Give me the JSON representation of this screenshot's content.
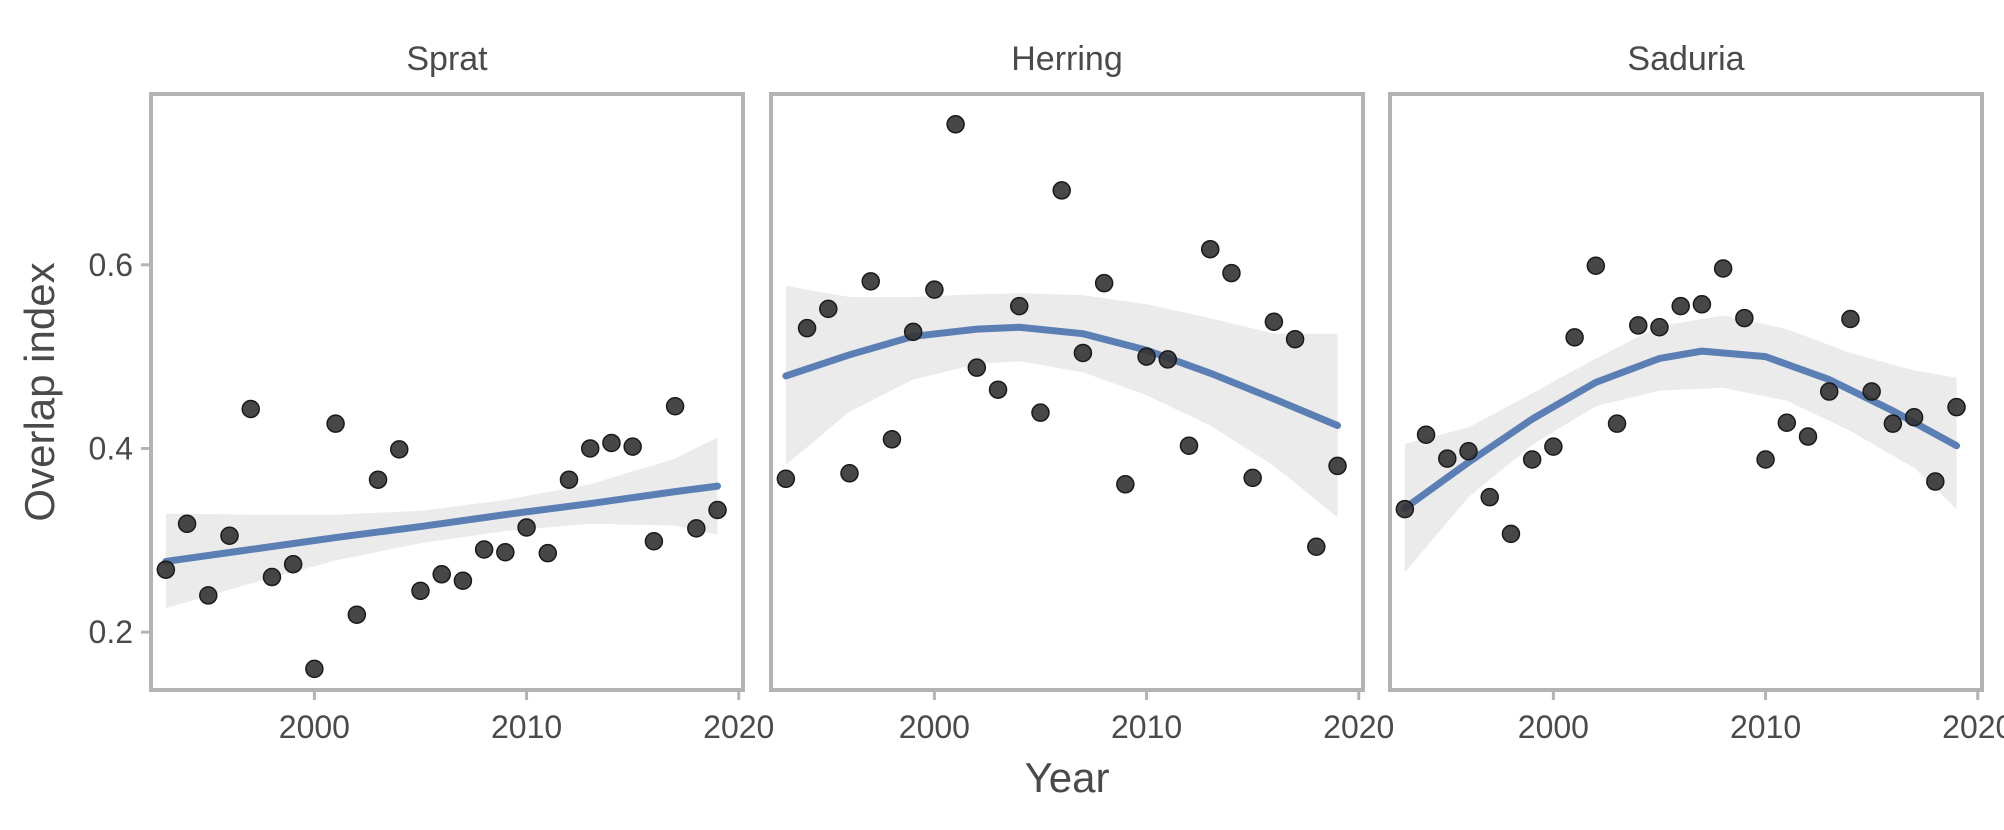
{
  "chart_data": {
    "type": "scatter",
    "xlabel": "Year",
    "ylabel": "Overlap index",
    "xlim": [
      1992.3,
      2020.2
    ],
    "ylim": [
      0.137,
      0.786
    ],
    "x_ticks": [
      2000,
      2010,
      2020
    ],
    "y_ticks": [
      0.2,
      0.4,
      0.6
    ],
    "x_tick_labels": [
      "2000",
      "2010",
      "2020"
    ],
    "y_tick_labels": [
      "0.2",
      "0.4",
      "0.6"
    ],
    "grid": false,
    "colors": {
      "points": "#333333",
      "trend_line": "#5b7fb4",
      "confidence_band": "#ebebeb",
      "panel_border": "#b3b3b3",
      "text": "#4a4a4a"
    },
    "panels": [
      {
        "title": "Sprat",
        "points": [
          [
            1993,
            0.268
          ],
          [
            1994,
            0.318
          ],
          [
            1995,
            0.24
          ],
          [
            1996,
            0.305
          ],
          [
            1997,
            0.443
          ],
          [
            1998,
            0.26
          ],
          [
            1999,
            0.274
          ],
          [
            2000,
            0.16
          ],
          [
            2001,
            0.427
          ],
          [
            2002,
            0.219
          ],
          [
            2003,
            0.366
          ],
          [
            2004,
            0.399
          ],
          [
            2005,
            0.245
          ],
          [
            2006,
            0.263
          ],
          [
            2007,
            0.256
          ],
          [
            2008,
            0.29
          ],
          [
            2009,
            0.287
          ],
          [
            2010,
            0.314
          ],
          [
            2011,
            0.286
          ],
          [
            2012,
            0.366
          ],
          [
            2013,
            0.4
          ],
          [
            2014,
            0.406
          ],
          [
            2015,
            0.402
          ],
          [
            2016,
            0.299
          ],
          [
            2017,
            0.446
          ],
          [
            2018,
            0.313
          ],
          [
            2019,
            0.333
          ]
        ],
        "fit": [
          [
            1993,
            0.277
          ],
          [
            1997,
            0.29
          ],
          [
            2001,
            0.303
          ],
          [
            2005,
            0.315
          ],
          [
            2009,
            0.328
          ],
          [
            2013,
            0.34
          ],
          [
            2017,
            0.353
          ],
          [
            2019,
            0.359
          ]
        ],
        "band_upper": [
          [
            1993,
            0.329
          ],
          [
            1997,
            0.328
          ],
          [
            2001,
            0.328
          ],
          [
            2005,
            0.332
          ],
          [
            2009,
            0.344
          ],
          [
            2013,
            0.361
          ],
          [
            2017,
            0.389
          ],
          [
            2019,
            0.412
          ]
        ],
        "band_lower": [
          [
            1993,
            0.226
          ],
          [
            1997,
            0.253
          ],
          [
            2001,
            0.278
          ],
          [
            2005,
            0.297
          ],
          [
            2009,
            0.31
          ],
          [
            2013,
            0.318
          ],
          [
            2017,
            0.316
          ],
          [
            2019,
            0.306
          ]
        ]
      },
      {
        "title": "Herring",
        "points": [
          [
            1993,
            0.367
          ],
          [
            1994,
            0.531
          ],
          [
            1995,
            0.552
          ],
          [
            1996,
            0.373
          ],
          [
            1997,
            0.582
          ],
          [
            1998,
            0.41
          ],
          [
            1999,
            0.527
          ],
          [
            2000,
            0.573
          ],
          [
            2001,
            0.753
          ],
          [
            2002,
            0.488
          ],
          [
            2003,
            0.464
          ],
          [
            2004,
            0.555
          ],
          [
            2005,
            0.439
          ],
          [
            2006,
            0.681
          ],
          [
            2007,
            0.504
          ],
          [
            2008,
            0.58
          ],
          [
            2009,
            0.361
          ],
          [
            2010,
            0.5
          ],
          [
            2011,
            0.497
          ],
          [
            2012,
            0.403
          ],
          [
            2013,
            0.617
          ],
          [
            2014,
            0.591
          ],
          [
            2015,
            0.368
          ],
          [
            2016,
            0.538
          ],
          [
            2017,
            0.519
          ],
          [
            2018,
            0.293
          ],
          [
            2019,
            0.381
          ]
        ],
        "fit": [
          [
            1993,
            0.479
          ],
          [
            1996,
            0.502
          ],
          [
            1999,
            0.522
          ],
          [
            2002,
            0.53
          ],
          [
            2004,
            0.532
          ],
          [
            2007,
            0.525
          ],
          [
            2010,
            0.507
          ],
          [
            2013,
            0.482
          ],
          [
            2016,
            0.454
          ],
          [
            2019,
            0.425
          ]
        ],
        "band_upper": [
          [
            1993,
            0.577
          ],
          [
            1996,
            0.565
          ],
          [
            1999,
            0.565
          ],
          [
            2002,
            0.568
          ],
          [
            2004,
            0.569
          ],
          [
            2007,
            0.567
          ],
          [
            2010,
            0.557
          ],
          [
            2013,
            0.542
          ],
          [
            2016,
            0.525
          ],
          [
            2019,
            0.525
          ]
        ],
        "band_lower": [
          [
            1993,
            0.382
          ],
          [
            1996,
            0.44
          ],
          [
            1999,
            0.475
          ],
          [
            2002,
            0.492
          ],
          [
            2004,
            0.495
          ],
          [
            2007,
            0.483
          ],
          [
            2010,
            0.458
          ],
          [
            2013,
            0.425
          ],
          [
            2016,
            0.381
          ],
          [
            2019,
            0.325
          ]
        ]
      },
      {
        "title": "Saduria",
        "points": [
          [
            1993,
            0.334
          ],
          [
            1994,
            0.415
          ],
          [
            1995,
            0.389
          ],
          [
            1996,
            0.397
          ],
          [
            1997,
            0.347
          ],
          [
            1998,
            0.307
          ],
          [
            1999,
            0.388
          ],
          [
            2000,
            0.402
          ],
          [
            2001,
            0.521
          ],
          [
            2002,
            0.599
          ],
          [
            2003,
            0.427
          ],
          [
            2004,
            0.534
          ],
          [
            2005,
            0.532
          ],
          [
            2006,
            0.555
          ],
          [
            2007,
            0.557
          ],
          [
            2008,
            0.596
          ],
          [
            2009,
            0.542
          ],
          [
            2010,
            0.388
          ],
          [
            2011,
            0.428
          ],
          [
            2012,
            0.413
          ],
          [
            2013,
            0.462
          ],
          [
            2014,
            0.541
          ],
          [
            2015,
            0.462
          ],
          [
            2016,
            0.427
          ],
          [
            2017,
            0.434
          ],
          [
            2018,
            0.364
          ],
          [
            2019,
            0.445
          ]
        ],
        "fit": [
          [
            1993,
            0.335
          ],
          [
            1996,
            0.385
          ],
          [
            1999,
            0.432
          ],
          [
            2002,
            0.472
          ],
          [
            2005,
            0.498
          ],
          [
            2007,
            0.506
          ],
          [
            2010,
            0.5
          ],
          [
            2013,
            0.475
          ],
          [
            2016,
            0.441
          ],
          [
            2019,
            0.403
          ]
        ],
        "band_upper": [
          [
            1993,
            0.405
          ],
          [
            1996,
            0.423
          ],
          [
            1999,
            0.46
          ],
          [
            2002,
            0.498
          ],
          [
            2005,
            0.533
          ],
          [
            2008,
            0.545
          ],
          [
            2011,
            0.53
          ],
          [
            2014,
            0.504
          ],
          [
            2017,
            0.485
          ],
          [
            2019,
            0.477
          ]
        ],
        "band_lower": [
          [
            1993,
            0.265
          ],
          [
            1996,
            0.347
          ],
          [
            1999,
            0.404
          ],
          [
            2002,
            0.446
          ],
          [
            2005,
            0.463
          ],
          [
            2008,
            0.466
          ],
          [
            2011,
            0.452
          ],
          [
            2014,
            0.419
          ],
          [
            2017,
            0.379
          ],
          [
            2019,
            0.334
          ]
        ]
      }
    ]
  }
}
